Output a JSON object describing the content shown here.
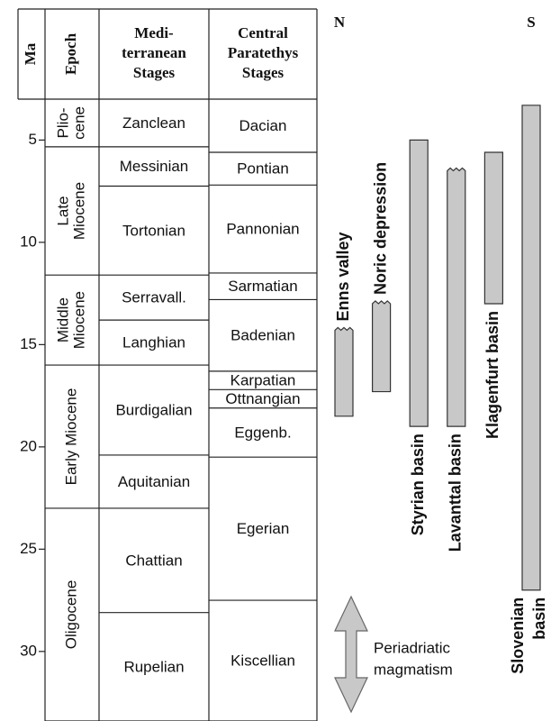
{
  "axis": {
    "label": "Ma",
    "lim": [
      3,
      33.4
    ],
    "ticks": [
      5,
      10,
      15,
      20,
      25,
      30
    ]
  },
  "headers": [
    {
      "lines": [
        "Epoch"
      ]
    },
    {
      "lines": [
        "Medi-",
        "terranean",
        "Stages"
      ]
    },
    {
      "lines": [
        "Central",
        "Paratethys",
        "Stages"
      ]
    }
  ],
  "epochs": [
    {
      "lines": [
        "Plio-",
        "cene"
      ],
      "from": 3,
      "to": 5.33
    },
    {
      "lines": [
        "Late",
        "Miocene"
      ],
      "from": 5.33,
      "to": 11.6
    },
    {
      "lines": [
        "Middle",
        "Miocene"
      ],
      "from": 11.6,
      "to": 16.0
    },
    {
      "lines": [
        "Early Miocene"
      ],
      "from": 16.0,
      "to": 23.0
    },
    {
      "lines": [
        "Oligocene"
      ],
      "from": 23.0,
      "to": 33.4
    }
  ],
  "mediterranean_stages": [
    {
      "label": "Zanclean",
      "from": 3,
      "to": 5.33
    },
    {
      "label": "Messinian",
      "from": 5.33,
      "to": 7.25
    },
    {
      "label": "Tortonian",
      "from": 7.25,
      "to": 11.6
    },
    {
      "label": "Serravall.",
      "from": 11.6,
      "to": 13.8
    },
    {
      "label": "Langhian",
      "from": 13.8,
      "to": 16.0
    },
    {
      "label": "Burdigalian",
      "from": 16.0,
      "to": 20.4
    },
    {
      "label": "Aquitanian",
      "from": 20.4,
      "to": 23.0
    },
    {
      "label": "Chattian",
      "from": 23.0,
      "to": 28.1
    },
    {
      "label": "Rupelian",
      "from": 28.1,
      "to": 33.4
    }
  ],
  "paratethys_stages": [
    {
      "label": "Dacian",
      "from": 3,
      "to": 5.6
    },
    {
      "label": "Pontian",
      "from": 5.6,
      "to": 7.2
    },
    {
      "label": "Pannonian",
      "from": 7.2,
      "to": 11.5
    },
    {
      "label": "Sarmatian",
      "from": 11.5,
      "to": 12.8
    },
    {
      "label": "Badenian",
      "from": 12.8,
      "to": 16.3
    },
    {
      "label": "Karpatian",
      "from": 16.3,
      "to": 17.2
    },
    {
      "label": "Ottnangian",
      "from": 17.2,
      "to": 18.1
    },
    {
      "label": "Eggenb.",
      "from": 18.1,
      "to": 20.5
    },
    {
      "label": "Egerian",
      "from": 20.5,
      "to": 27.5
    },
    {
      "label": "Kiscellian",
      "from": 27.5,
      "to": 33.4
    }
  ],
  "north_label": "N",
  "south_label": "S",
  "basins": [
    {
      "lines": [
        "Enns valley"
      ],
      "top": 14.3,
      "bottom": 18.5,
      "wavy_top": true,
      "label_side": "above"
    },
    {
      "lines": [
        "Noric depression"
      ],
      "top": 13.0,
      "bottom": 17.3,
      "wavy_top": true,
      "label_side": "above"
    },
    {
      "lines": [
        "Styrian basin"
      ],
      "top": 5.0,
      "bottom": 19.0,
      "wavy_top": false,
      "label_side": "below"
    },
    {
      "lines": [
        "Lavanttal basin"
      ],
      "top": 6.5,
      "bottom": 19.0,
      "wavy_top": true,
      "label_side": "below"
    },
    {
      "lines": [
        "Klagenfurt basin"
      ],
      "top": 5.6,
      "bottom": 13.0,
      "wavy_top": false,
      "label_side": "below"
    },
    {
      "lines": [
        "Slovenian",
        "basin"
      ],
      "top": 3.3,
      "bottom": 27.0,
      "wavy_top": false,
      "label_side": "below"
    }
  ],
  "bar_color": "#c8c8c8",
  "magmatism": {
    "lines": [
      "Periadriatic",
      "magmatism"
    ]
  }
}
